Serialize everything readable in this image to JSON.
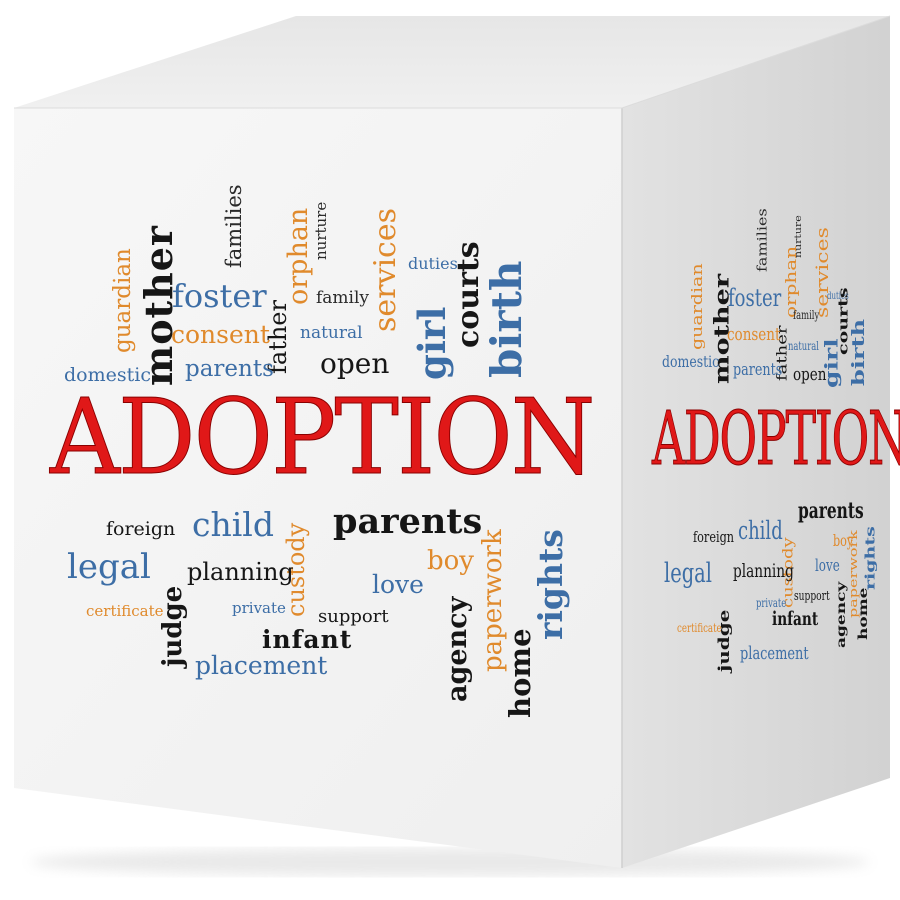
{
  "image": {
    "title": "ADOPTION",
    "front_words": {
      "mother": "mother",
      "families": "families",
      "nurture": "nurture",
      "services": "services",
      "guardian": "guardian",
      "orphan": "orphan",
      "duties": "duties",
      "foster": "foster",
      "family": "family",
      "courts": "courts",
      "father": "father",
      "consent": "consent",
      "natural": "natural",
      "girl": "girl",
      "birth": "birth",
      "domestic": "domestic",
      "parents_small": "parents",
      "open": "open",
      "foreign": "foreign",
      "child": "child",
      "parents_big": "parents",
      "custody": "custody",
      "paperwork": "paperwork",
      "rights": "rights",
      "legal": "legal",
      "planning": "planning",
      "boy": "boy",
      "judge": "judge",
      "love": "love",
      "certificate": "certificate",
      "private": "private",
      "support": "support",
      "agency": "agency",
      "home": "home",
      "infant": "infant",
      "placement": "placement"
    },
    "colors": {
      "title": "#e01818",
      "blue": "#3d6ea6",
      "orange": "#e08a2c",
      "black": "#161616",
      "face_front": "#f4f4f4",
      "face_side": "#d9d9d9",
      "face_top": "#ececec"
    }
  }
}
